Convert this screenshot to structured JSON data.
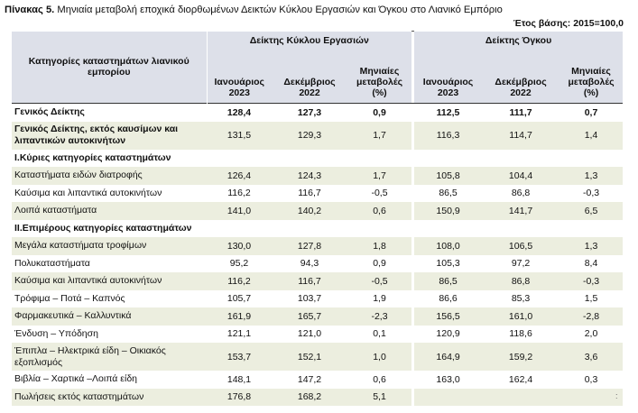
{
  "title": {
    "prefix": "Πίνακας 5.",
    "text": "Μηνιαία μεταβολή εποχικά διορθωμένων Δεικτών Κύκλου Εργασιών και Όγκου στο Λιανικό Εμπόριο"
  },
  "base_year_note": "Έτος βάσης: 2015=100,0",
  "table": {
    "header": {
      "category": "Κατηγορίες καταστημάτων λιανικού εμπορίου",
      "group_turnover": "Δείκτης Κύκλου Εργασιών",
      "group_volume": "Δείκτης Όγκου",
      "col_month_1": "Ιανουάριος",
      "col_month_2": "Δεκέμβριος",
      "col_change": "Μηνιαίες μεταβολές",
      "col_year_1": "2023",
      "col_year_2": "2022",
      "col_unit": "(%)"
    },
    "rows": [
      {
        "label": "Γενικός Δείκτης",
        "bold": true,
        "shade": false,
        "t1": "128,4",
        "t2": "127,3",
        "tc": "0,9",
        "v1": "112,5",
        "v2": "111,7",
        "vc": "0,7"
      },
      {
        "label": "Γενικός Δείκτης, εκτός καυσίμων και λιπαντικών αυτοκινήτων",
        "bold": false,
        "labelBold": true,
        "shade": true,
        "tall": true,
        "t1": "131,5",
        "t2": "129,3",
        "tc": "1,7",
        "v1": "116,3",
        "v2": "114,7",
        "vc": "1,4"
      },
      {
        "label": "I.Κύριες κατηγορίες καταστημάτων",
        "bold": true,
        "shade": false,
        "t1": "",
        "t2": "",
        "tc": "",
        "v1": "",
        "v2": "",
        "vc": ""
      },
      {
        "label": "Καταστήματα ειδών διατροφής",
        "bold": false,
        "shade": true,
        "t1": "126,4",
        "t2": "124,3",
        "tc": "1,7",
        "v1": "105,8",
        "v2": "104,4",
        "vc": "1,3"
      },
      {
        "label": "Καύσιμα και λιπαντικά αυτοκινήτων",
        "bold": false,
        "shade": false,
        "t1": "116,2",
        "t2": "116,7",
        "tc": "-0,5",
        "v1": "86,5",
        "v2": "86,8",
        "vc": "-0,3"
      },
      {
        "label": "Λοιπά καταστήματα",
        "bold": false,
        "shade": true,
        "t1": "141,0",
        "t2": "140,2",
        "tc": "0,6",
        "v1": "150,9",
        "v2": "141,7",
        "vc": "6,5"
      },
      {
        "label": "II.Επιμέρους κατηγορίες καταστημάτων",
        "bold": true,
        "shade": false,
        "t1": "",
        "t2": "",
        "tc": "",
        "v1": "",
        "v2": "",
        "vc": ""
      },
      {
        "label": "Μεγάλα καταστήματα τροφίμων",
        "bold": false,
        "shade": true,
        "t1": "130,0",
        "t2": "127,8",
        "tc": "1,8",
        "v1": "108,0",
        "v2": "106,5",
        "vc": "1,3"
      },
      {
        "label": "Πολυκαταστήματα",
        "bold": false,
        "shade": false,
        "t1": "95,2",
        "t2": "94,3",
        "tc": "0,9",
        "v1": "105,3",
        "v2": "97,2",
        "vc": "8,4"
      },
      {
        "label": "Καύσιμα και λιπαντικά αυτοκινήτων",
        "bold": false,
        "shade": true,
        "t1": "116,2",
        "t2": "116,7",
        "tc": "-0,5",
        "v1": "86,5",
        "v2": "86,8",
        "vc": "-0,3"
      },
      {
        "label": "Τρόφιμα – Ποτά – Καπνός",
        "bold": false,
        "shade": false,
        "t1": "105,7",
        "t2": "103,7",
        "tc": "1,9",
        "v1": "86,6",
        "v2": "85,3",
        "vc": "1,5"
      },
      {
        "label": "Φαρμακευτικά – Καλλυντικά",
        "bold": false,
        "shade": true,
        "t1": "161,9",
        "t2": "165,7",
        "tc": "-2,3",
        "v1": "156,5",
        "v2": "161,0",
        "vc": "-2,8"
      },
      {
        "label": "Ένδυση – Υπόδηση",
        "bold": false,
        "shade": false,
        "t1": "121,1",
        "t2": "121,0",
        "tc": "0,1",
        "v1": "120,9",
        "v2": "118,6",
        "vc": "2,0"
      },
      {
        "label": "Έπιπλα – Ηλεκτρικά είδη – Οικιακός εξοπλισμός",
        "bold": false,
        "shade": true,
        "tall": true,
        "t1": "153,7",
        "t2": "152,1",
        "tc": "1,0",
        "v1": "164,9",
        "v2": "159,2",
        "vc": "3,6"
      },
      {
        "label": "Βιβλία – Χαρτικά –Λοιπά είδη",
        "bold": false,
        "shade": false,
        "t1": "148,1",
        "t2": "147,2",
        "tc": "0,6",
        "v1": "163,0",
        "v2": "162,4",
        "vc": "0,3"
      },
      {
        "label": "Πωλήσεις εκτός καταστημάτων",
        "bold": false,
        "shade": true,
        "t1": "176,8",
        "t2": "168,2",
        "tc": "5,1",
        "v1": "",
        "v2": "",
        "vc": ""
      }
    ]
  }
}
